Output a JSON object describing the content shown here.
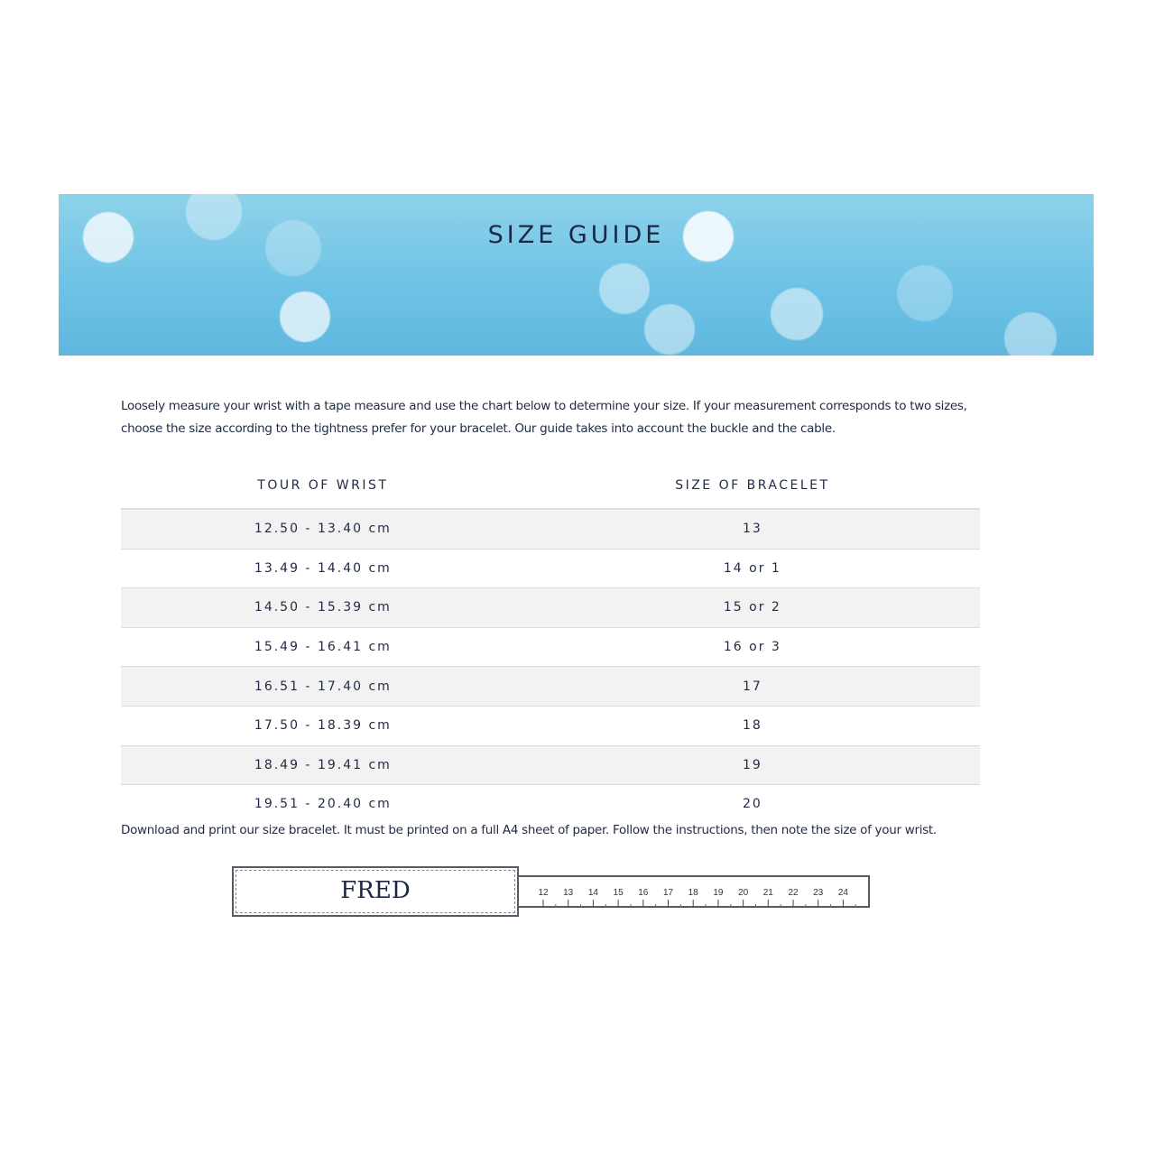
{
  "banner": {
    "title": "SIZE GUIDE"
  },
  "intro": "Loosely measure your wrist with a tape measure and use the chart below to determine your size. If your measurement corresponds to two sizes, choose the size according to the tightness prefer for your bracelet. Our guide takes into account the buckle and the cable.",
  "table": {
    "headers": [
      "TOUR OF WRIST",
      "SIZE OF BRACELET"
    ],
    "rows": [
      [
        "12.50 - 13.40 cm",
        "13"
      ],
      [
        "13.49 - 14.40 cm",
        "14 or 1"
      ],
      [
        "14.50 - 15.39 cm",
        "15 or 2"
      ],
      [
        "15.49 - 16.41 cm",
        "16 or 3"
      ],
      [
        "16.51 - 17.40 cm",
        "17"
      ],
      [
        "17.50 - 18.39 cm",
        "18"
      ],
      [
        "18.49 - 19.41 cm",
        "19"
      ],
      [
        "19.51 - 20.40 cm",
        "20"
      ]
    ]
  },
  "download_note": "Download and print our size bracelet. It must be printed on a full A4 sheet of paper. Follow the instructions, then note the size of your wrist.",
  "bracelet": {
    "logo": "FRED",
    "ruler_labels": [
      "12",
      "13",
      "14",
      "15",
      "16",
      "17",
      "18",
      "19",
      "20",
      "21",
      "22",
      "23",
      "24"
    ]
  }
}
